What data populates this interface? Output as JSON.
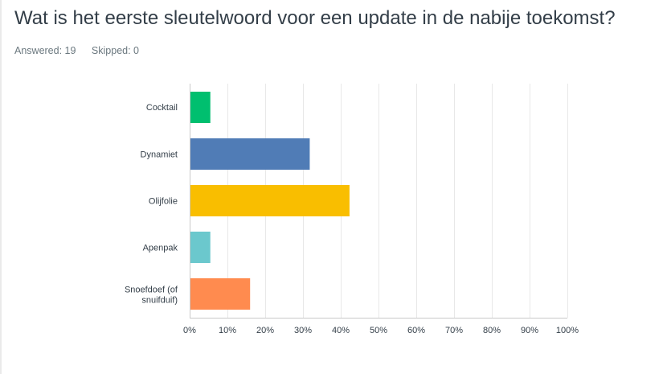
{
  "question": {
    "title": "Wat is het eerste sleutelwoord voor een update in de nabije toekomst?",
    "answered": "Answered: 19",
    "skipped": "Skipped: 0"
  },
  "chart_data": {
    "type": "bar",
    "orientation": "horizontal",
    "title": "",
    "xlabel": "",
    "ylabel": "",
    "xlim": [
      0,
      100
    ],
    "grid": true,
    "categories": [
      [
        "Cocktail"
      ],
      [
        "Dynamiet"
      ],
      [
        "Olijfolie"
      ],
      [
        "Apenpak"
      ],
      [
        "Snoefdoef (of",
        "snuifduif)"
      ]
    ],
    "values": [
      5.26,
      31.58,
      42.11,
      5.26,
      15.79
    ],
    "colors": [
      "#00bf6f",
      "#507cb6",
      "#f9be00",
      "#6bc8cd",
      "#ff8b4f"
    ],
    "ticks": [
      "0%",
      "10%",
      "20%",
      "30%",
      "40%",
      "50%",
      "60%",
      "70%",
      "80%",
      "90%",
      "100%"
    ]
  }
}
